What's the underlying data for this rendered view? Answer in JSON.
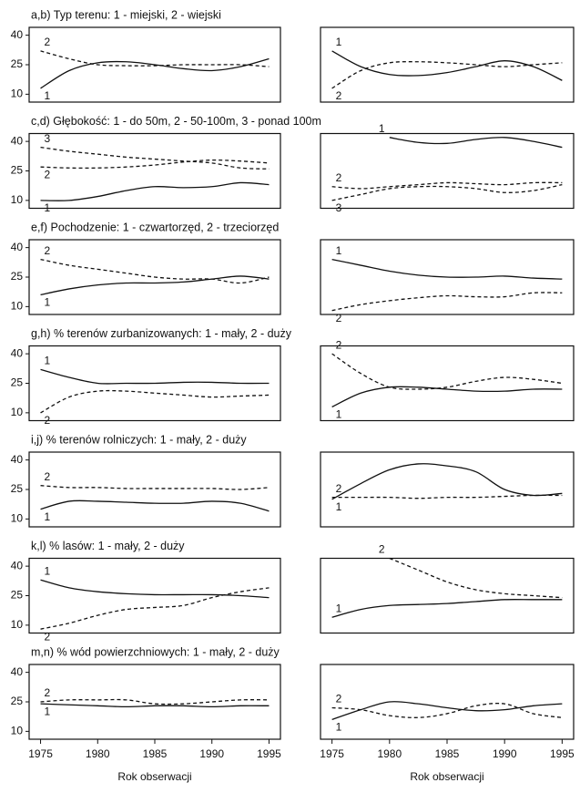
{
  "chart_data": [
    {
      "type": "line",
      "title": "a,b) Typ terenu: 1 - miejski, 2 - wiejski",
      "x": [
        1975,
        1977.5,
        1980,
        1982.5,
        1985,
        1987.5,
        1990,
        1992.5,
        1995
      ],
      "xlim": [
        1974,
        1996
      ],
      "ylim": [
        6,
        44
      ],
      "yticks": [
        10,
        25,
        40
      ],
      "series": [
        {
          "name": "1",
          "color": "#111",
          "dash": false,
          "values": [
            13,
            22,
            26,
            26.5,
            25,
            23,
            22,
            24,
            28
          ]
        },
        {
          "name": "2",
          "color": "#111",
          "dash": true,
          "values": [
            32,
            28,
            25,
            24.5,
            24.5,
            25,
            25,
            25,
            24
          ]
        }
      ]
    },
    {
      "type": "line",
      "x": [
        1975,
        1977.5,
        1980,
        1982.5,
        1985,
        1987.5,
        1990,
        1992.5,
        1995
      ],
      "xlim": [
        1974,
        1996
      ],
      "ylim": [
        6,
        44
      ],
      "series": [
        {
          "name": "1",
          "color": "#111",
          "dash": false,
          "values": [
            32,
            24,
            20,
            19.5,
            21,
            24,
            27,
            24,
            17
          ]
        },
        {
          "name": "2",
          "color": "#111",
          "dash": true,
          "values": [
            13,
            22,
            26,
            26.5,
            26,
            25,
            24,
            25,
            26
          ]
        }
      ]
    },
    {
      "type": "line",
      "title": "c,d) Głębokość: 1 - do 50m, 2 - 50-100m, 3 - ponad 100m",
      "x": [
        1975,
        1977.5,
        1980,
        1982.5,
        1985,
        1987.5,
        1990,
        1992.5,
        1995
      ],
      "xlim": [
        1974,
        1996
      ],
      "ylim": [
        6,
        44
      ],
      "yticks": [
        10,
        25,
        40
      ],
      "series": [
        {
          "name": "1",
          "color": "#111",
          "dash": false,
          "values": [
            10,
            10,
            12,
            15,
            17,
            16.5,
            17,
            19,
            18
          ]
        },
        {
          "name": "2",
          "color": "#111",
          "dash": true,
          "values": [
            27,
            26.5,
            26.5,
            27,
            28,
            29.5,
            30.5,
            30,
            29
          ]
        },
        {
          "name": "3",
          "color": "#111",
          "dash": true,
          "values": [
            37,
            35,
            33.5,
            32,
            31,
            30,
            29,
            26.5,
            26
          ]
        }
      ]
    },
    {
      "type": "line",
      "x": [
        1975,
        1977.5,
        1980,
        1982.5,
        1985,
        1987.5,
        1990,
        1992.5,
        1995
      ],
      "xlim": [
        1974,
        1996
      ],
      "ylim": [
        6,
        44
      ],
      "series": [
        {
          "name": "1",
          "color": "#111",
          "dash": false,
          "values": [
            null,
            null,
            42,
            39.5,
            39,
            41,
            42,
            40,
            37
          ]
        },
        {
          "name": "2",
          "color": "#111",
          "dash": true,
          "values": [
            17,
            16,
            17,
            18,
            19,
            18.5,
            18,
            19,
            19
          ]
        },
        {
          "name": "3",
          "color": "#111",
          "dash": true,
          "values": [
            10,
            13,
            16,
            17,
            17,
            16,
            14,
            15,
            18
          ]
        }
      ]
    },
    {
      "type": "line",
      "title": "e,f) Pochodzenie: 1 - czwartorzęd, 2 - trzeciorzęd",
      "x": [
        1975,
        1977.5,
        1980,
        1982.5,
        1985,
        1987.5,
        1990,
        1992.5,
        1995
      ],
      "xlim": [
        1974,
        1996
      ],
      "ylim": [
        6,
        44
      ],
      "yticks": [
        10,
        25,
        40
      ],
      "series": [
        {
          "name": "1",
          "color": "#111",
          "dash": false,
          "values": [
            16,
            19,
            21,
            22,
            22,
            22.5,
            24,
            25.5,
            24
          ]
        },
        {
          "name": "2",
          "color": "#111",
          "dash": true,
          "values": [
            34,
            31,
            29,
            27,
            25,
            24,
            24,
            22,
            25
          ]
        }
      ]
    },
    {
      "type": "line",
      "x": [
        1975,
        1977.5,
        1980,
        1982.5,
        1985,
        1987.5,
        1990,
        1992.5,
        1995
      ],
      "xlim": [
        1974,
        1996
      ],
      "ylim": [
        6,
        44
      ],
      "series": [
        {
          "name": "1",
          "color": "#111",
          "dash": false,
          "values": [
            34,
            31,
            28,
            26,
            25,
            25,
            25.5,
            24.5,
            24
          ]
        },
        {
          "name": "2",
          "color": "#111",
          "dash": true,
          "values": [
            8,
            11,
            13,
            14.5,
            15.5,
            15,
            15,
            17,
            17
          ]
        }
      ]
    },
    {
      "type": "line",
      "title": "g,h) % terenów zurbanizowanych: 1 - mały, 2 - duży",
      "x": [
        1975,
        1977.5,
        1980,
        1982.5,
        1985,
        1987.5,
        1990,
        1992.5,
        1995
      ],
      "xlim": [
        1974,
        1996
      ],
      "ylim": [
        6,
        44
      ],
      "yticks": [
        10,
        25,
        40
      ],
      "series": [
        {
          "name": "1",
          "color": "#111",
          "dash": false,
          "values": [
            32,
            28,
            25,
            25,
            25,
            25.5,
            25.5,
            25,
            25
          ]
        },
        {
          "name": "2",
          "color": "#111",
          "dash": true,
          "values": [
            10,
            18,
            21,
            21,
            20,
            19,
            18,
            18.5,
            19
          ]
        }
      ]
    },
    {
      "type": "line",
      "x": [
        1975,
        1977.5,
        1980,
        1982.5,
        1985,
        1987.5,
        1990,
        1992.5,
        1995
      ],
      "xlim": [
        1974,
        1996
      ],
      "ylim": [
        6,
        44
      ],
      "series": [
        {
          "name": "1",
          "color": "#111",
          "dash": false,
          "values": [
            13,
            20,
            23,
            23,
            22,
            21,
            21,
            22,
            22
          ]
        },
        {
          "name": "2",
          "color": "#111",
          "dash": true,
          "values": [
            40,
            30,
            23,
            22,
            23,
            26,
            28,
            27,
            25
          ]
        }
      ]
    },
    {
      "type": "line",
      "title": "i,j) % terenów rolniczych: 1 - mały, 2 - duży",
      "x": [
        1975,
        1977.5,
        1980,
        1982.5,
        1985,
        1987.5,
        1990,
        1992.5,
        1995
      ],
      "xlim": [
        1974,
        1996
      ],
      "ylim": [
        6,
        44
      ],
      "yticks": [
        10,
        25,
        40
      ],
      "series": [
        {
          "name": "1",
          "color": "#111",
          "dash": false,
          "values": [
            15,
            19,
            19,
            18.5,
            18,
            18,
            19,
            18,
            14
          ]
        },
        {
          "name": "2",
          "color": "#111",
          "dash": true,
          "values": [
            27,
            26,
            26,
            25.5,
            25.5,
            25.5,
            25.5,
            25,
            26
          ]
        }
      ]
    },
    {
      "type": "line",
      "x": [
        1975,
        1977.5,
        1980,
        1982.5,
        1985,
        1987.5,
        1990,
        1992.5,
        1995
      ],
      "xlim": [
        1974,
        1996
      ],
      "ylim": [
        6,
        44
      ],
      "series": [
        {
          "name": "1",
          "color": "#111",
          "dash": false,
          "values": [
            20,
            28,
            35,
            38,
            37,
            34,
            25,
            22,
            23
          ]
        },
        {
          "name": "2",
          "color": "#111",
          "dash": true,
          "values": [
            21,
            21,
            21,
            20.5,
            21,
            21,
            21.5,
            22,
            22
          ]
        }
      ]
    },
    {
      "type": "line",
      "title": "k,l) % lasów: 1 - mały, 2 - duży",
      "x": [
        1975,
        1977.5,
        1980,
        1982.5,
        1985,
        1987.5,
        1990,
        1992.5,
        1995
      ],
      "xlim": [
        1974,
        1996
      ],
      "ylim": [
        6,
        44
      ],
      "yticks": [
        10,
        25,
        40
      ],
      "series": [
        {
          "name": "1",
          "color": "#111",
          "dash": false,
          "values": [
            33,
            29,
            27,
            26,
            25.5,
            25.5,
            25.5,
            25,
            24
          ]
        },
        {
          "name": "2",
          "color": "#111",
          "dash": true,
          "values": [
            8,
            11,
            15,
            18,
            19,
            20,
            24,
            27,
            29
          ]
        }
      ]
    },
    {
      "type": "line",
      "x": [
        1975,
        1977.5,
        1980,
        1982.5,
        1985,
        1987.5,
        1990,
        1992.5,
        1995
      ],
      "xlim": [
        1974,
        1996
      ],
      "ylim": [
        6,
        44
      ],
      "series": [
        {
          "name": "1",
          "color": "#111",
          "dash": false,
          "values": [
            14,
            18,
            20,
            20.5,
            21,
            22,
            23,
            23,
            23
          ]
        },
        {
          "name": "2",
          "color": "#111",
          "dash": true,
          "values": [
            null,
            null,
            44,
            38,
            32,
            28,
            26,
            25,
            24
          ]
        }
      ]
    },
    {
      "type": "line",
      "title": "m,n) % wód powierzchniowych: 1 - mały, 2 - duży",
      "x": [
        1975,
        1977.5,
        1980,
        1982.5,
        1985,
        1987.5,
        1990,
        1992.5,
        1995
      ],
      "xlim": [
        1974,
        1996
      ],
      "ylim": [
        6,
        44
      ],
      "yticks": [
        10,
        25,
        40
      ],
      "xticks": [
        1975,
        1980,
        1985,
        1990,
        1995
      ],
      "xlabel": "Rok obserwacji",
      "series": [
        {
          "name": "1",
          "color": "#111",
          "dash": false,
          "values": [
            24,
            23.5,
            23,
            22.5,
            23,
            23,
            22.5,
            23,
            23
          ]
        },
        {
          "name": "2",
          "color": "#111",
          "dash": true,
          "values": [
            25,
            26,
            26,
            26,
            24,
            24,
            25,
            26,
            26
          ]
        }
      ]
    },
    {
      "type": "line",
      "x": [
        1975,
        1977.5,
        1980,
        1982.5,
        1985,
        1987.5,
        1990,
        1992.5,
        1995
      ],
      "xlim": [
        1974,
        1996
      ],
      "ylim": [
        6,
        44
      ],
      "xticks": [
        1975,
        1980,
        1985,
        1990,
        1995
      ],
      "xlabel": "Rok obserwacji",
      "series": [
        {
          "name": "1",
          "color": "#111",
          "dash": false,
          "values": [
            16,
            21,
            25,
            24,
            22,
            20.5,
            21,
            23,
            24
          ]
        },
        {
          "name": "2",
          "color": "#111",
          "dash": true,
          "values": [
            22,
            21,
            18,
            17,
            19,
            23,
            24,
            19,
            17
          ]
        }
      ]
    }
  ]
}
